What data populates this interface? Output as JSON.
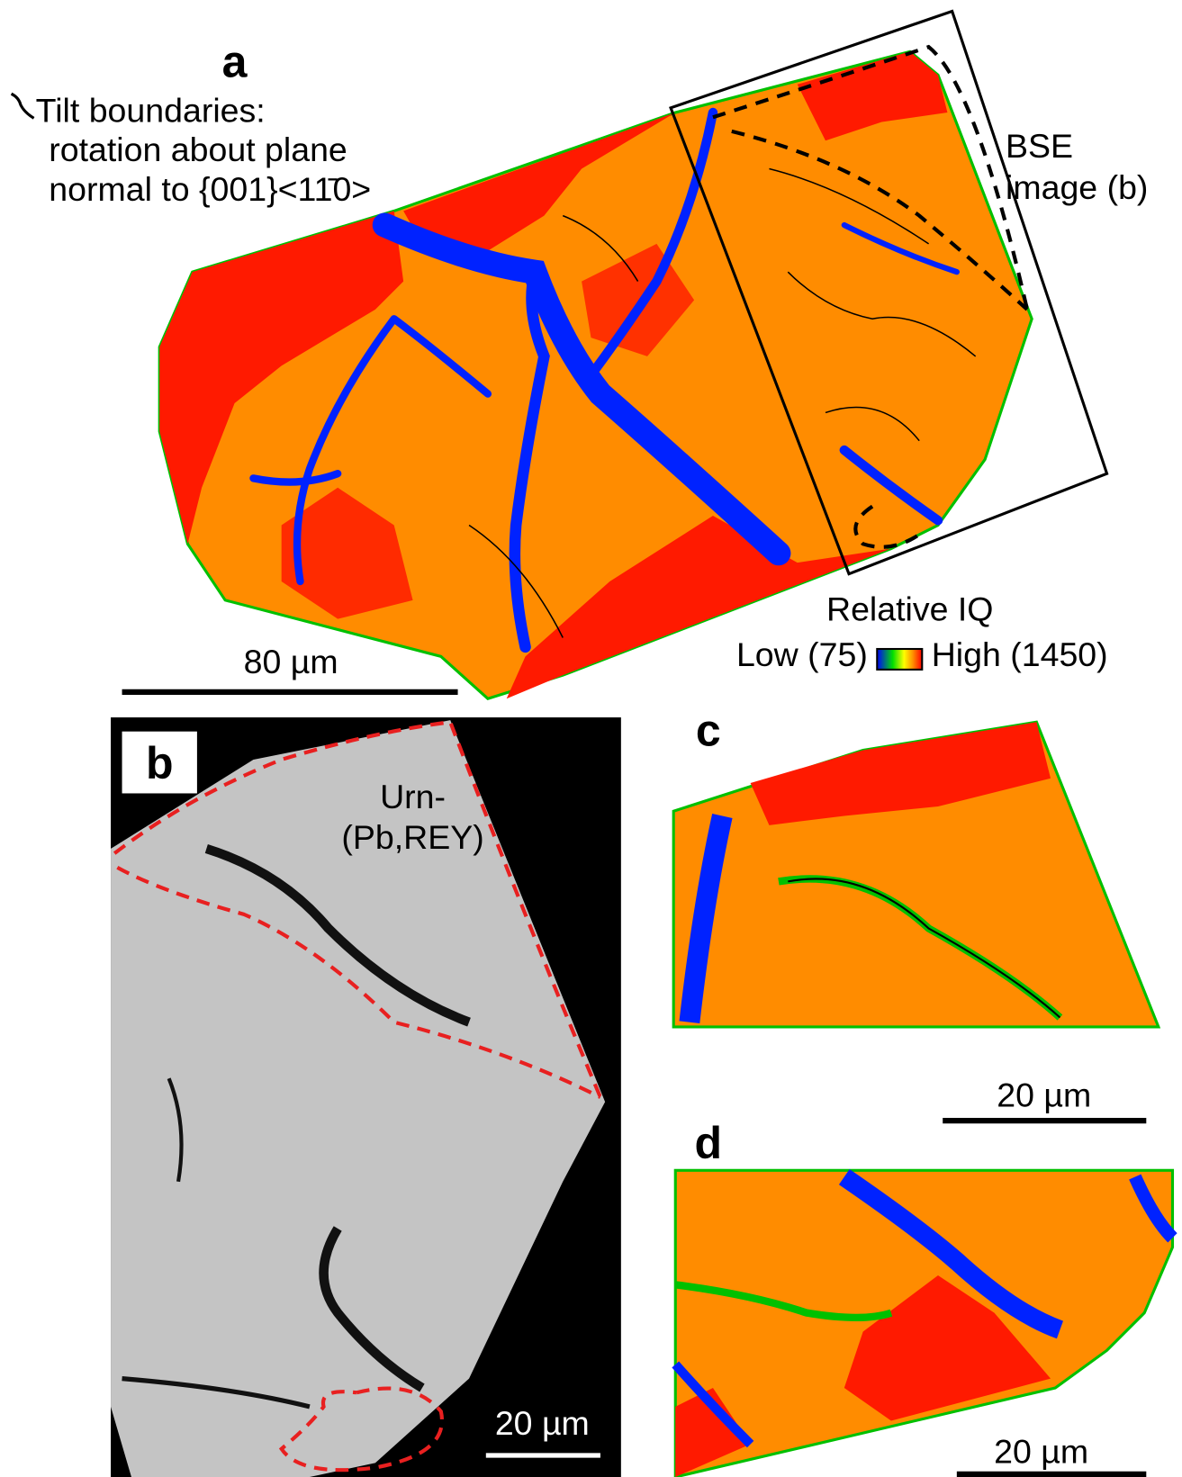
{
  "panel_a": {
    "label": "a",
    "legend": [
      "Tilt boundaries:",
      "rotation about plane",
      "normal to {001}<11̄0>"
    ],
    "box_label": [
      "BSE",
      "image (b)"
    ],
    "colorbar": {
      "title": "Relative IQ",
      "low": "Low (75)",
      "high": "High (1450)"
    },
    "scale_bar": "80 µm"
  },
  "panel_b": {
    "label": "b",
    "phase": [
      "Urn-",
      "(Pb,REY)"
    ],
    "scale_bar": "20 µm"
  },
  "panel_c": {
    "label": "c",
    "scale_bar": "20 µm"
  },
  "panel_d": {
    "label": "d",
    "scale_bar": "20 µm"
  }
}
